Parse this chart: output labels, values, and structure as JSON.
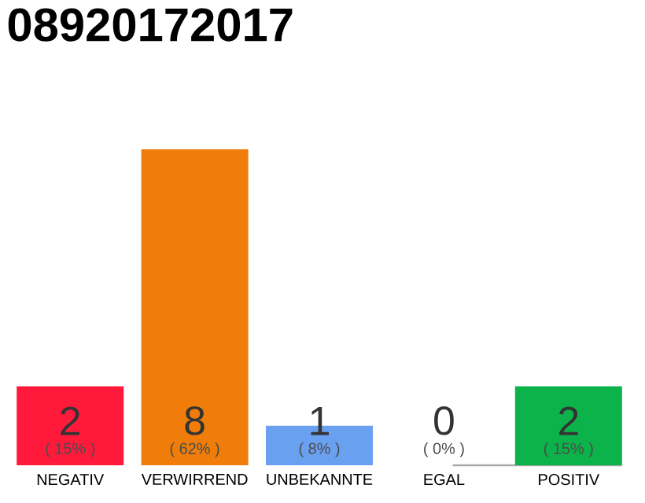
{
  "chart_data": {
    "type": "bar",
    "title": "08920172017",
    "categories": [
      "NEGATIV",
      "VERWIRREND",
      "UNBEKANNTE",
      "EGAL",
      "POSITIV"
    ],
    "values": [
      2,
      8,
      1,
      0,
      2
    ],
    "colors": [
      "#ff1a3c",
      "#f07d0a",
      "#6aa0f0",
      "#aaaaaa",
      "#0cb34a"
    ],
    "ylim": [
      0,
      8
    ],
    "data_labels": true,
    "tick_labels": "x",
    "annotations": [
      "( 15% )",
      "( 62% )",
      "( 8% )",
      "( 0% )",
      "( 15% )"
    ]
  }
}
